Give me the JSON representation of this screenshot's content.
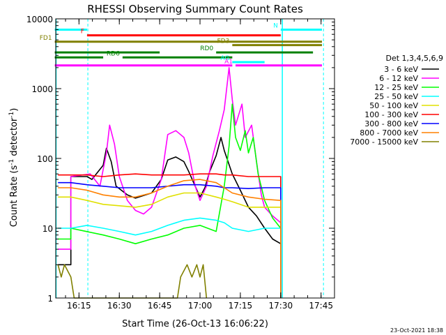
{
  "chart_data": {
    "type": "line",
    "title": "RHESSI Observing Summary Count Rates",
    "xlabel": "Start Time (26-Oct-13 16:06:22)",
    "ylabel_main": "Count Rate (s",
    "ylabel_sup1": "-1",
    "ylabel_mid": " detector",
    "ylabel_sup2": "-1",
    "ylabel_end": ")",
    "yscale": "log",
    "xlim": [
      16.1061,
      17.8333
    ],
    "ylim": [
      1,
      10000
    ],
    "x_ticks": [
      {
        "v": 16.25,
        "label": "16:15"
      },
      {
        "v": 16.5,
        "label": "16:30"
      },
      {
        "v": 16.75,
        "label": "16:45"
      },
      {
        "v": 17.0,
        "label": "17:00"
      },
      {
        "v": 17.25,
        "label": "17:15"
      },
      {
        "v": 17.5,
        "label": "17:30"
      },
      {
        "v": 17.75,
        "label": "17:45"
      }
    ],
    "y_ticks": [
      {
        "v": 1,
        "label": "1"
      },
      {
        "v": 10,
        "label": "10"
      },
      {
        "v": 100,
        "label": "100"
      },
      {
        "v": 1000,
        "label": "1000"
      },
      {
        "v": 10000,
        "label": "10000"
      }
    ],
    "legend_title": "Det 1,3,4,5,6,9",
    "legend_position": "right",
    "series": [
      {
        "name": "3 - 6 keV",
        "color": "#000000",
        "points": [
          [
            16.12,
            3
          ],
          [
            16.2,
            3
          ],
          [
            16.2,
            55
          ],
          [
            16.3,
            55
          ],
          [
            16.33,
            50
          ],
          [
            16.4,
            80
          ],
          [
            16.42,
            140
          ],
          [
            16.45,
            90
          ],
          [
            16.48,
            40
          ],
          [
            16.55,
            30
          ],
          [
            16.6,
            27
          ],
          [
            16.7,
            32
          ],
          [
            16.76,
            50
          ],
          [
            16.8,
            95
          ],
          [
            16.85,
            105
          ],
          [
            16.9,
            90
          ],
          [
            16.93,
            65
          ],
          [
            16.97,
            40
          ],
          [
            17.0,
            28
          ],
          [
            17.03,
            38
          ],
          [
            17.06,
            65
          ],
          [
            17.1,
            110
          ],
          [
            17.13,
            200
          ],
          [
            17.15,
            130
          ],
          [
            17.2,
            60
          ],
          [
            17.25,
            35
          ],
          [
            17.3,
            20
          ],
          [
            17.35,
            15
          ],
          [
            17.4,
            10
          ],
          [
            17.45,
            7
          ],
          [
            17.5,
            6
          ],
          [
            17.5,
            1
          ]
        ]
      },
      {
        "name": "6 - 12 keV",
        "color": "#ff00ff",
        "points": [
          [
            16.12,
            5
          ],
          [
            16.2,
            5
          ],
          [
            16.2,
            55
          ],
          [
            16.32,
            60
          ],
          [
            16.38,
            40
          ],
          [
            16.42,
            120
          ],
          [
            16.44,
            300
          ],
          [
            16.47,
            160
          ],
          [
            16.5,
            55
          ],
          [
            16.55,
            25
          ],
          [
            16.6,
            18
          ],
          [
            16.65,
            16
          ],
          [
            16.7,
            20
          ],
          [
            16.76,
            50
          ],
          [
            16.8,
            220
          ],
          [
            16.85,
            250
          ],
          [
            16.9,
            200
          ],
          [
            16.93,
            120
          ],
          [
            16.97,
            40
          ],
          [
            17.0,
            25
          ],
          [
            17.04,
            40
          ],
          [
            17.08,
            110
          ],
          [
            17.12,
            250
          ],
          [
            17.15,
            500
          ],
          [
            17.18,
            2000
          ],
          [
            17.2,
            700
          ],
          [
            17.22,
            300
          ],
          [
            17.26,
            600
          ],
          [
            17.28,
            200
          ],
          [
            17.32,
            300
          ],
          [
            17.35,
            90
          ],
          [
            17.38,
            30
          ],
          [
            17.4,
            20
          ],
          [
            17.45,
            15
          ],
          [
            17.5,
            12
          ],
          [
            17.5,
            1
          ]
        ]
      },
      {
        "name": "12 - 25 keV",
        "color": "#00ff00",
        "points": [
          [
            16.12,
            7
          ],
          [
            16.2,
            7
          ],
          [
            16.2,
            10
          ],
          [
            16.4,
            8
          ],
          [
            16.5,
            7
          ],
          [
            16.6,
            6
          ],
          [
            16.7,
            7
          ],
          [
            16.8,
            8
          ],
          [
            16.9,
            10
          ],
          [
            17.0,
            11
          ],
          [
            17.1,
            9
          ],
          [
            17.15,
            40
          ],
          [
            17.18,
            150
          ],
          [
            17.2,
            600
          ],
          [
            17.22,
            200
          ],
          [
            17.25,
            130
          ],
          [
            17.28,
            250
          ],
          [
            17.3,
            120
          ],
          [
            17.33,
            200
          ],
          [
            17.36,
            60
          ],
          [
            17.4,
            25
          ],
          [
            17.45,
            14
          ],
          [
            17.5,
            10
          ],
          [
            17.5,
            1
          ]
        ]
      },
      {
        "name": "25 - 50 keV",
        "color": "#00ffff",
        "points": [
          [
            16.12,
            10
          ],
          [
            16.2,
            10
          ],
          [
            16.3,
            11
          ],
          [
            16.4,
            10
          ],
          [
            16.5,
            9
          ],
          [
            16.6,
            8
          ],
          [
            16.7,
            9
          ],
          [
            16.8,
            11
          ],
          [
            16.9,
            13
          ],
          [
            17.0,
            14
          ],
          [
            17.1,
            13
          ],
          [
            17.15,
            12
          ],
          [
            17.2,
            10
          ],
          [
            17.3,
            9
          ],
          [
            17.4,
            10
          ],
          [
            17.5,
            10
          ],
          [
            17.5,
            1
          ]
        ]
      },
      {
        "name": "50 - 100 keV",
        "color": "#e0e000",
        "points": [
          [
            16.12,
            28
          ],
          [
            16.2,
            28
          ],
          [
            16.3,
            25
          ],
          [
            16.4,
            22
          ],
          [
            16.5,
            21
          ],
          [
            16.6,
            20
          ],
          [
            16.7,
            22
          ],
          [
            16.8,
            28
          ],
          [
            16.9,
            32
          ],
          [
            17.0,
            32
          ],
          [
            17.1,
            28
          ],
          [
            17.15,
            26
          ],
          [
            17.2,
            24
          ],
          [
            17.3,
            20
          ],
          [
            17.4,
            20
          ],
          [
            17.5,
            20
          ],
          [
            17.5,
            1
          ]
        ]
      },
      {
        "name": "100 - 300 keV",
        "color": "#ff0000",
        "points": [
          [
            16.12,
            58
          ],
          [
            16.2,
            58
          ],
          [
            16.3,
            58
          ],
          [
            16.4,
            55
          ],
          [
            16.5,
            58
          ],
          [
            16.6,
            60
          ],
          [
            16.7,
            58
          ],
          [
            16.8,
            58
          ],
          [
            16.9,
            58
          ],
          [
            17.0,
            60
          ],
          [
            17.1,
            60
          ],
          [
            17.15,
            58
          ],
          [
            17.2,
            58
          ],
          [
            17.3,
            55
          ],
          [
            17.4,
            55
          ],
          [
            17.5,
            55
          ],
          [
            17.5,
            1
          ]
        ]
      },
      {
        "name": "300 - 800 keV",
        "color": "#0000ff",
        "points": [
          [
            16.12,
            45
          ],
          [
            16.2,
            45
          ],
          [
            16.3,
            42
          ],
          [
            16.4,
            40
          ],
          [
            16.5,
            38
          ],
          [
            16.6,
            38
          ],
          [
            16.7,
            38
          ],
          [
            16.8,
            40
          ],
          [
            16.9,
            42
          ],
          [
            17.0,
            42
          ],
          [
            17.1,
            40
          ],
          [
            17.15,
            38
          ],
          [
            17.2,
            38
          ],
          [
            17.3,
            37
          ],
          [
            17.4,
            38
          ],
          [
            17.5,
            38
          ],
          [
            17.5,
            1
          ]
        ]
      },
      {
        "name": "800 - 7000 keV",
        "color": "#ff8000",
        "points": [
          [
            16.12,
            38
          ],
          [
            16.2,
            38
          ],
          [
            16.3,
            35
          ],
          [
            16.4,
            30
          ],
          [
            16.5,
            28
          ],
          [
            16.6,
            28
          ],
          [
            16.7,
            32
          ],
          [
            16.8,
            40
          ],
          [
            16.9,
            48
          ],
          [
            17.0,
            50
          ],
          [
            17.1,
            45
          ],
          [
            17.15,
            38
          ],
          [
            17.2,
            32
          ],
          [
            17.3,
            28
          ],
          [
            17.4,
            26
          ],
          [
            17.5,
            25
          ],
          [
            17.5,
            1
          ]
        ]
      },
      {
        "name": "7000 - 15000 keV",
        "color": "#808000",
        "points": [
          [
            16.12,
            3
          ],
          [
            16.14,
            2
          ],
          [
            16.16,
            3
          ],
          [
            16.2,
            2
          ],
          [
            16.22,
            1
          ],
          [
            16.86,
            1
          ],
          [
            16.88,
            2
          ],
          [
            16.92,
            3
          ],
          [
            16.95,
            2
          ],
          [
            16.98,
            3
          ],
          [
            17.0,
            2
          ],
          [
            17.02,
            3
          ],
          [
            17.04,
            1
          ]
        ]
      }
    ],
    "flags": [
      {
        "label": "N",
        "color": "#00ffff",
        "segments": [
          [
            16.1,
            16.3
          ],
          [
            17.5,
            17.76
          ]
        ],
        "y": 7000
      },
      {
        "label": "F",
        "color": "#ff0000",
        "segments": [
          [
            16.3,
            17.5
          ]
        ],
        "y": 5800
      },
      {
        "label": "FD1",
        "color": "#808000",
        "segments": [
          [
            16.1,
            17.76
          ]
        ],
        "y": 4700
      },
      {
        "label": "FD3",
        "color": "#808000",
        "segments": [
          [
            17.2,
            17.76
          ]
        ],
        "y": 4200
      },
      {
        "label": "RD0",
        "color": "#008000",
        "segments": [
          [
            16.1,
            16.75
          ],
          [
            17.1,
            17.7
          ]
        ],
        "y": 3300
      },
      {
        "label": "RD6",
        "color": "#008000",
        "segments": [
          [
            16.1,
            16.4
          ],
          [
            16.52,
            17.2
          ]
        ],
        "y": 2800
      },
      {
        "label": "AG",
        "color": "#00ffff",
        "segments": [
          [
            17.2,
            17.4
          ]
        ],
        "y": 2400
      },
      {
        "label": "A1",
        "color": "#ff00ff",
        "segments": [
          [
            16.1,
            17.2
          ],
          [
            17.22,
            17.76
          ]
        ],
        "y": 2150
      }
    ],
    "saa_dashes": [
      16.305,
      17.765
    ],
    "night_bounds": [
      16.108,
      17.51
    ]
  },
  "footer": {
    "timestamp": "23-Oct-2021 18:38"
  }
}
